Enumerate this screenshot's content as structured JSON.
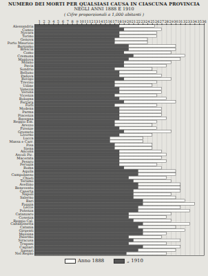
{
  "chart_data": {
    "type": "bar",
    "orientation": "horizontal",
    "grid": true,
    "title": "NUMERO DEI MORTI PER QUALSIASI CAUSA IN CIASCUNA PROVINCIA",
    "subtitle": "NEGLI ANNI 1888 E 1910",
    "annotations": [
      "( Cifre proporzionali a 1,000 abitanti )"
    ],
    "legend": "bottom",
    "categories": [
      "Alessandria",
      "Cuneo",
      "Novara",
      "Torino",
      "Genova",
      "Porto Maurizio",
      "Bergamo",
      "Brescia",
      "Como",
      "Cremona",
      "Mantova",
      "Milano",
      "Pavia",
      "Sondrio",
      "Belluno",
      "Padova",
      "Rovigo",
      "Treviso",
      "Udine",
      "Venezia",
      "Verona",
      "Vicenza",
      "Bologna",
      "Ferrara",
      "Forlì",
      "Modena",
      "Parma",
      "Piacenza",
      "Ravenna",
      "Reggio Em.",
      "Arezzo",
      "Firenze",
      "Grosseto",
      "Livorno",
      "Lucca",
      "Massa e Carr.",
      "Pisa",
      "Siena",
      "Ancona",
      "Ascoli Pic.",
      "Macerata",
      "Pesaro",
      "Perugia",
      "Roma",
      "Aquila",
      "Campobasso",
      "Chieti",
      "Teramo",
      "Avellino",
      "Benevento",
      "Caserta",
      "Napoli",
      "Salerno",
      "Bari",
      "Foggia",
      "Lecce",
      "Potenza",
      "Catanzaro",
      "Cosenza",
      "Reggio Cal.",
      "Caltanissetta",
      "Catania",
      "Girgenti",
      "Messina",
      "Palermo",
      "Siracusa",
      "Trapani",
      "Cagliari",
      "Sassari",
      "Nel Regno"
    ],
    "series": [
      {
        "name": "Anno 1888",
        "color": "#fbfbf8",
        "values": [
          25.5,
          27,
          26,
          26,
          24,
          24,
          30,
          30,
          29,
          32,
          31,
          29,
          28,
          25,
          26,
          27,
          29,
          26,
          25,
          27,
          27,
          26,
          28,
          30,
          26,
          27,
          27,
          27,
          28,
          26,
          25,
          26,
          29,
          25,
          23,
          23,
          25,
          25,
          27,
          28,
          27,
          28,
          26,
          27,
          30,
          30,
          28,
          29,
          31,
          31,
          31,
          29,
          30,
          32,
          34,
          31,
          33,
          29,
          28,
          29,
          33,
          30,
          32,
          28,
          27,
          31,
          28,
          31,
          30,
          28
        ]
      },
      {
        "name": "„ 1910",
        "color": "#555555",
        "values": [
          18,
          19,
          18,
          18,
          17,
          17,
          20,
          20,
          19,
          21,
          20,
          19,
          19,
          17,
          18,
          18,
          19,
          17,
          17,
          18,
          18,
          17,
          18,
          19,
          17,
          18,
          18,
          18,
          18,
          17,
          17,
          18,
          19,
          18,
          16,
          16,
          17,
          17,
          18,
          18,
          18,
          18,
          18,
          19,
          22,
          22,
          20,
          21,
          22,
          22,
          21,
          21,
          21,
          23,
          23,
          22,
          22,
          20,
          20,
          21,
          23,
          22,
          23,
          23,
          20,
          21,
          20,
          23,
          22,
          19.5
        ]
      }
    ],
    "xlim": [
      0,
      36
    ],
    "xticks": [
      1,
      2,
      3,
      4,
      5,
      6,
      7,
      8,
      9,
      10,
      11,
      12,
      13,
      14,
      15,
      16,
      17,
      18,
      19,
      20,
      21,
      22,
      23,
      24,
      25,
      26,
      27,
      28,
      29,
      30,
      31,
      32,
      33,
      34,
      35,
      36
    ]
  }
}
